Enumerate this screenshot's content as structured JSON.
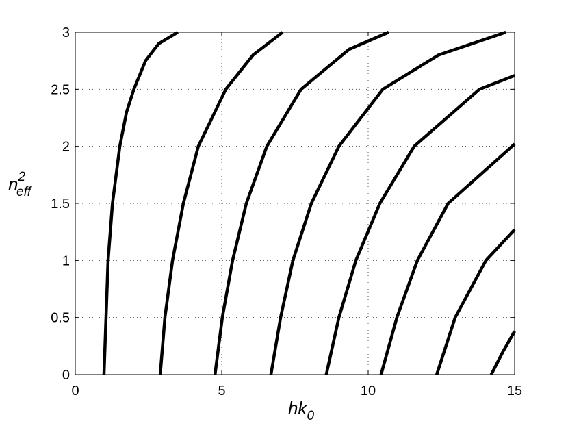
{
  "chart_data": {
    "type": "line",
    "xlabel": {
      "text": "hk",
      "sub": "0"
    },
    "ylabel": {
      "text": "n",
      "sup": "2",
      "sub": "eff"
    },
    "xlim": [
      0,
      15
    ],
    "xticks": [
      0,
      5,
      10,
      15
    ],
    "ylim": [
      0,
      3
    ],
    "yticks": [
      0,
      0.5,
      1,
      1.5,
      2,
      2.5,
      3
    ],
    "grid": true,
    "series": [
      {
        "color": "#000000",
        "x": [
          0.98,
          1.05,
          1.12,
          1.27,
          1.52,
          1.75,
          2.0,
          2.4,
          2.85,
          3.5
        ],
        "values": [
          0,
          0.5,
          1,
          1.5,
          2,
          2.3,
          2.5,
          2.75,
          2.9,
          3.0
        ]
      },
      {
        "color": "#000000",
        "x": [
          2.9,
          3.06,
          3.32,
          3.69,
          4.2,
          5.14,
          6.07,
          7.08
        ],
        "values": [
          0,
          0.5,
          1,
          1.5,
          2,
          2.5,
          2.8,
          3.0
        ]
      },
      {
        "color": "#000000",
        "x": [
          4.77,
          5.02,
          5.37,
          5.84,
          6.54,
          7.71,
          9.35,
          10.7
        ],
        "values": [
          0,
          0.5,
          1,
          1.5,
          2,
          2.5,
          2.85,
          3.0
        ]
      },
      {
        "color": "#000000",
        "x": [
          6.68,
          7.01,
          7.43,
          8.06,
          9.0,
          10.5,
          12.4,
          14.7
        ],
        "values": [
          0,
          0.5,
          1,
          1.5,
          2,
          2.5,
          2.8,
          3.0
        ]
      },
      {
        "color": "#000000",
        "x": [
          8.57,
          9.0,
          9.58,
          10.4,
          11.57,
          13.8,
          15
        ],
        "values": [
          0,
          0.5,
          1,
          1.5,
          2,
          2.5,
          2.62
        ]
      },
      {
        "color": "#000000",
        "x": [
          10.44,
          10.98,
          11.68,
          12.73,
          15
        ],
        "values": [
          0,
          0.5,
          1,
          1.5,
          2.02
        ]
      },
      {
        "color": "#000000",
        "x": [
          12.34,
          12.97,
          14.02,
          15
        ],
        "values": [
          0,
          0.5,
          1,
          1.27
        ]
      },
      {
        "color": "#000000",
        "x": [
          14.2,
          14.6,
          15
        ],
        "values": [
          0,
          0.2,
          0.38
        ]
      }
    ]
  }
}
